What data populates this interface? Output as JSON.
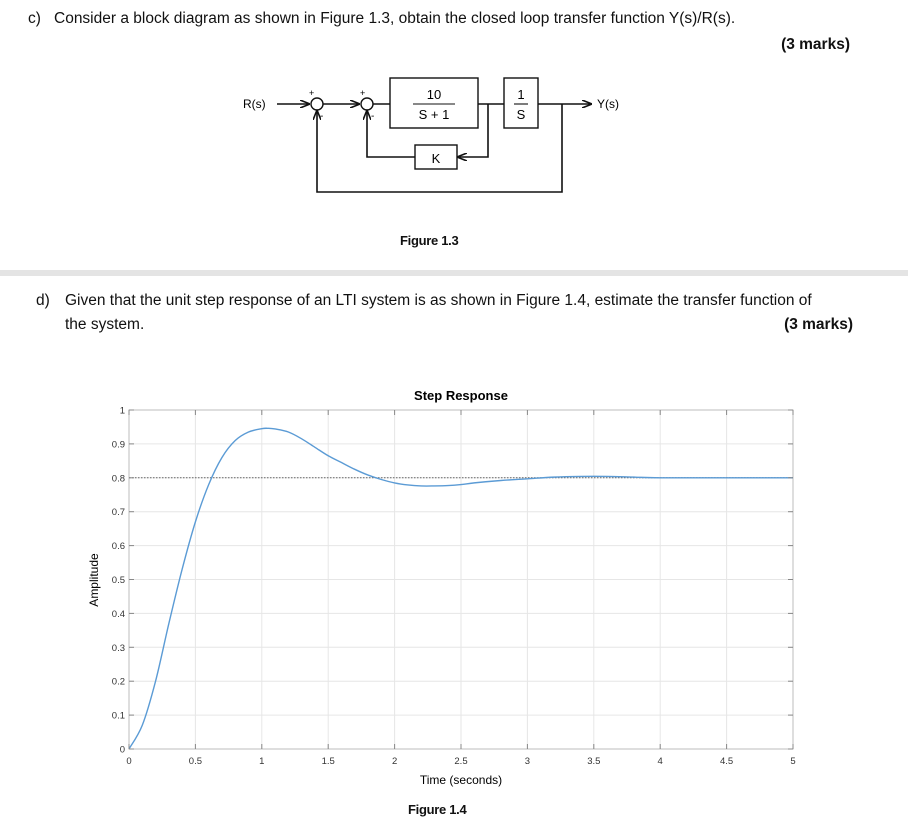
{
  "question_c": {
    "label": "c)",
    "text": "Consider a block diagram as shown in Figure 1.3, obtain the closed loop transfer function Y(s)/R(s).",
    "marks": "(3 marks)"
  },
  "block_diagram": {
    "input_label": "R(s)",
    "output_label": "Y(s)",
    "block1_num": "10",
    "block1_den": "S + 1",
    "block2_num": "1",
    "block2_den": "S",
    "feedback_block": "K",
    "sum_sign_plus": "+",
    "sum_sign_minus": "-",
    "caption": "Figure 1.3"
  },
  "question_d": {
    "label": "d)",
    "text_line1": "Given that the unit step response of an LTI system is as shown in Figure 1.4, estimate the transfer function of",
    "text_line2": "the system.",
    "marks": "(3 marks)"
  },
  "chart_data": {
    "type": "line",
    "title": "Step Response",
    "xlabel": "Time (seconds)",
    "ylabel": "Amplitude",
    "xlim": [
      0,
      5
    ],
    "ylim": [
      0,
      1
    ],
    "xticks": [
      0,
      0.5,
      1,
      1.5,
      2,
      2.5,
      3,
      3.5,
      4,
      4.5,
      5
    ],
    "xtick_labels": [
      "0",
      "0.5",
      "1",
      "1.5",
      "2",
      "2.5",
      "3",
      "3.5",
      "4",
      "4.5",
      "5"
    ],
    "yticks": [
      0,
      0.1,
      0.2,
      0.3,
      0.4,
      0.5,
      0.6,
      0.7,
      0.8,
      0.9,
      1
    ],
    "ytick_labels": [
      "0",
      "0.1",
      "0.2",
      "0.3",
      "0.4",
      "0.5",
      "0.6",
      "0.7",
      "0.8",
      "0.9",
      "1"
    ],
    "grid": true,
    "final_value": 0.8,
    "series": [
      {
        "x": [
          0,
          0.1,
          0.2,
          0.3,
          0.4,
          0.5,
          0.6,
          0.7,
          0.8,
          0.9,
          1.0,
          1.05,
          1.1,
          1.2,
          1.3,
          1.4,
          1.5,
          1.6,
          1.7,
          1.8,
          1.9,
          2.0,
          2.1,
          2.2,
          2.3,
          2.4,
          2.5,
          2.6,
          2.8,
          3.0,
          3.2,
          3.4,
          3.6,
          3.8,
          4.0,
          4.5,
          5.0
        ],
        "y": [
          0,
          0.07,
          0.2,
          0.37,
          0.53,
          0.67,
          0.78,
          0.86,
          0.91,
          0.935,
          0.945,
          0.946,
          0.944,
          0.935,
          0.915,
          0.89,
          0.865,
          0.845,
          0.825,
          0.808,
          0.795,
          0.785,
          0.779,
          0.776,
          0.776,
          0.777,
          0.78,
          0.785,
          0.792,
          0.797,
          0.802,
          0.804,
          0.804,
          0.802,
          0.8,
          0.8,
          0.8
        ],
        "color": "#5b9bd5"
      }
    ],
    "reference_line": {
      "y": 0.8,
      "style": "dotted",
      "color": "#666666"
    },
    "caption": "Figure 1.4"
  }
}
